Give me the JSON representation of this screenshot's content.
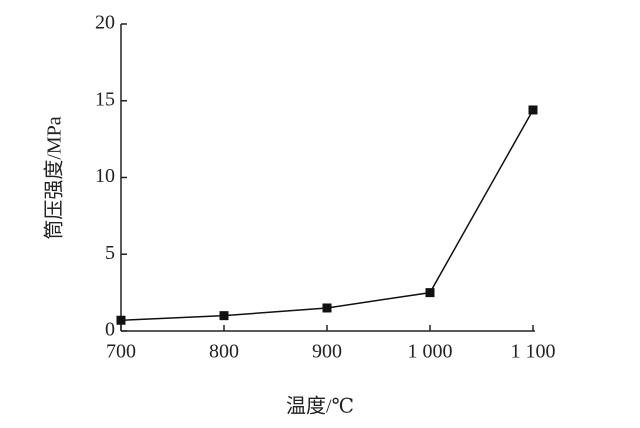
{
  "chart_data": {
    "type": "line",
    "x_label": "温度/℃",
    "y_label": "筒压强度/MPa",
    "x": [
      700,
      800,
      900,
      1000,
      1100
    ],
    "values": [
      0.7,
      1.0,
      1.5,
      2.5,
      14.4
    ],
    "color": "#111111",
    "xlim": [
      700,
      1100
    ],
    "ylim": [
      0,
      20
    ],
    "xticks": [
      700,
      800,
      900,
      {
        "value": 1000,
        "label": "1 000"
      },
      {
        "value": 1100,
        "label": "1 100"
      }
    ],
    "yticks": [
      0,
      5,
      10,
      15,
      20
    ]
  }
}
